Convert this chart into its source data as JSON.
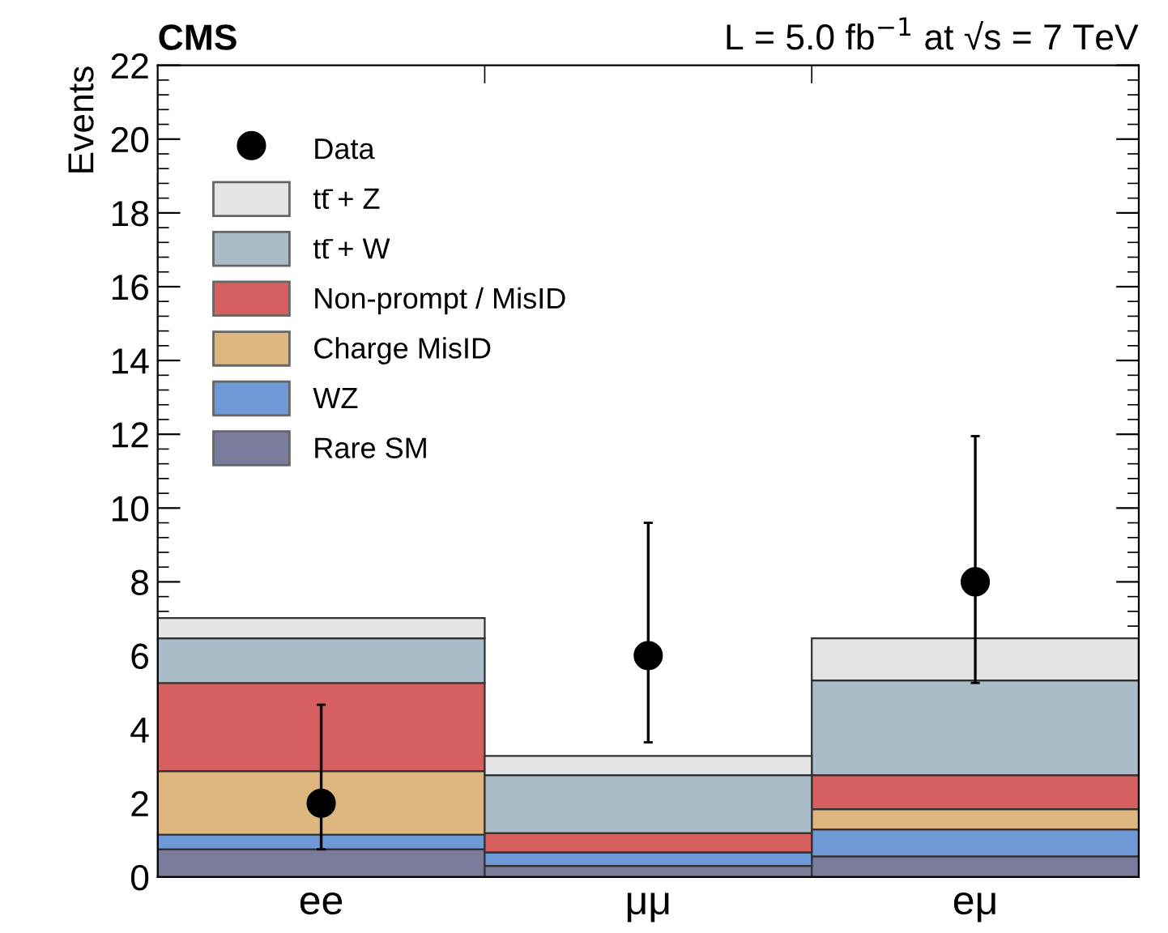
{
  "chart_data": {
    "type": "bar",
    "stacked": true,
    "title": "CMS",
    "subtitle": "L = 5.0 fb$^{−1}$ at √s = 7 TeV",
    "ylabel": "Events",
    "categories": [
      "ee",
      "μμ",
      "eμ"
    ],
    "series": [
      {
        "name": "Rare SM",
        "color": "#7a7a9a",
        "values": [
          0.75,
          0.3,
          0.56
        ]
      },
      {
        "name": "WZ",
        "color": "#6f98d6",
        "values": [
          0.4,
          0.37,
          0.73
        ]
      },
      {
        "name": "Charge MisID",
        "color": "#deb67f",
        "values": [
          1.72,
          0,
          0.55
        ]
      },
      {
        "name": "Non-prompt / MisID",
        "color": "#d65f5f",
        "values": [
          2.39,
          0.52,
          0.92
        ]
      },
      {
        "name": "tt̄ + W",
        "color": "#a9bcc8",
        "values": [
          1.21,
          1.57,
          2.57
        ]
      },
      {
        "name": "tt̄ + Z",
        "color": "#e5e5e5",
        "values": [
          0.55,
          0.52,
          1.14
        ]
      },
      {
        "name": "Data",
        "type": "scatter",
        "color": "#000000",
        "marker": "circle",
        "x": [
          "ee",
          "μμ",
          "eμ"
        ],
        "values": [
          2,
          6,
          8
        ],
        "errors": [
          [
            0.75,
            4.67
          ],
          [
            3.65,
            9.6
          ],
          [
            5.26,
            11.95
          ]
        ]
      }
    ],
    "ylim": [
      0,
      22
    ],
    "yticks": [
      0,
      2,
      4,
      6,
      8,
      10,
      12,
      14,
      16,
      18,
      20,
      22
    ],
    "grid": false,
    "legend": "top left"
  }
}
